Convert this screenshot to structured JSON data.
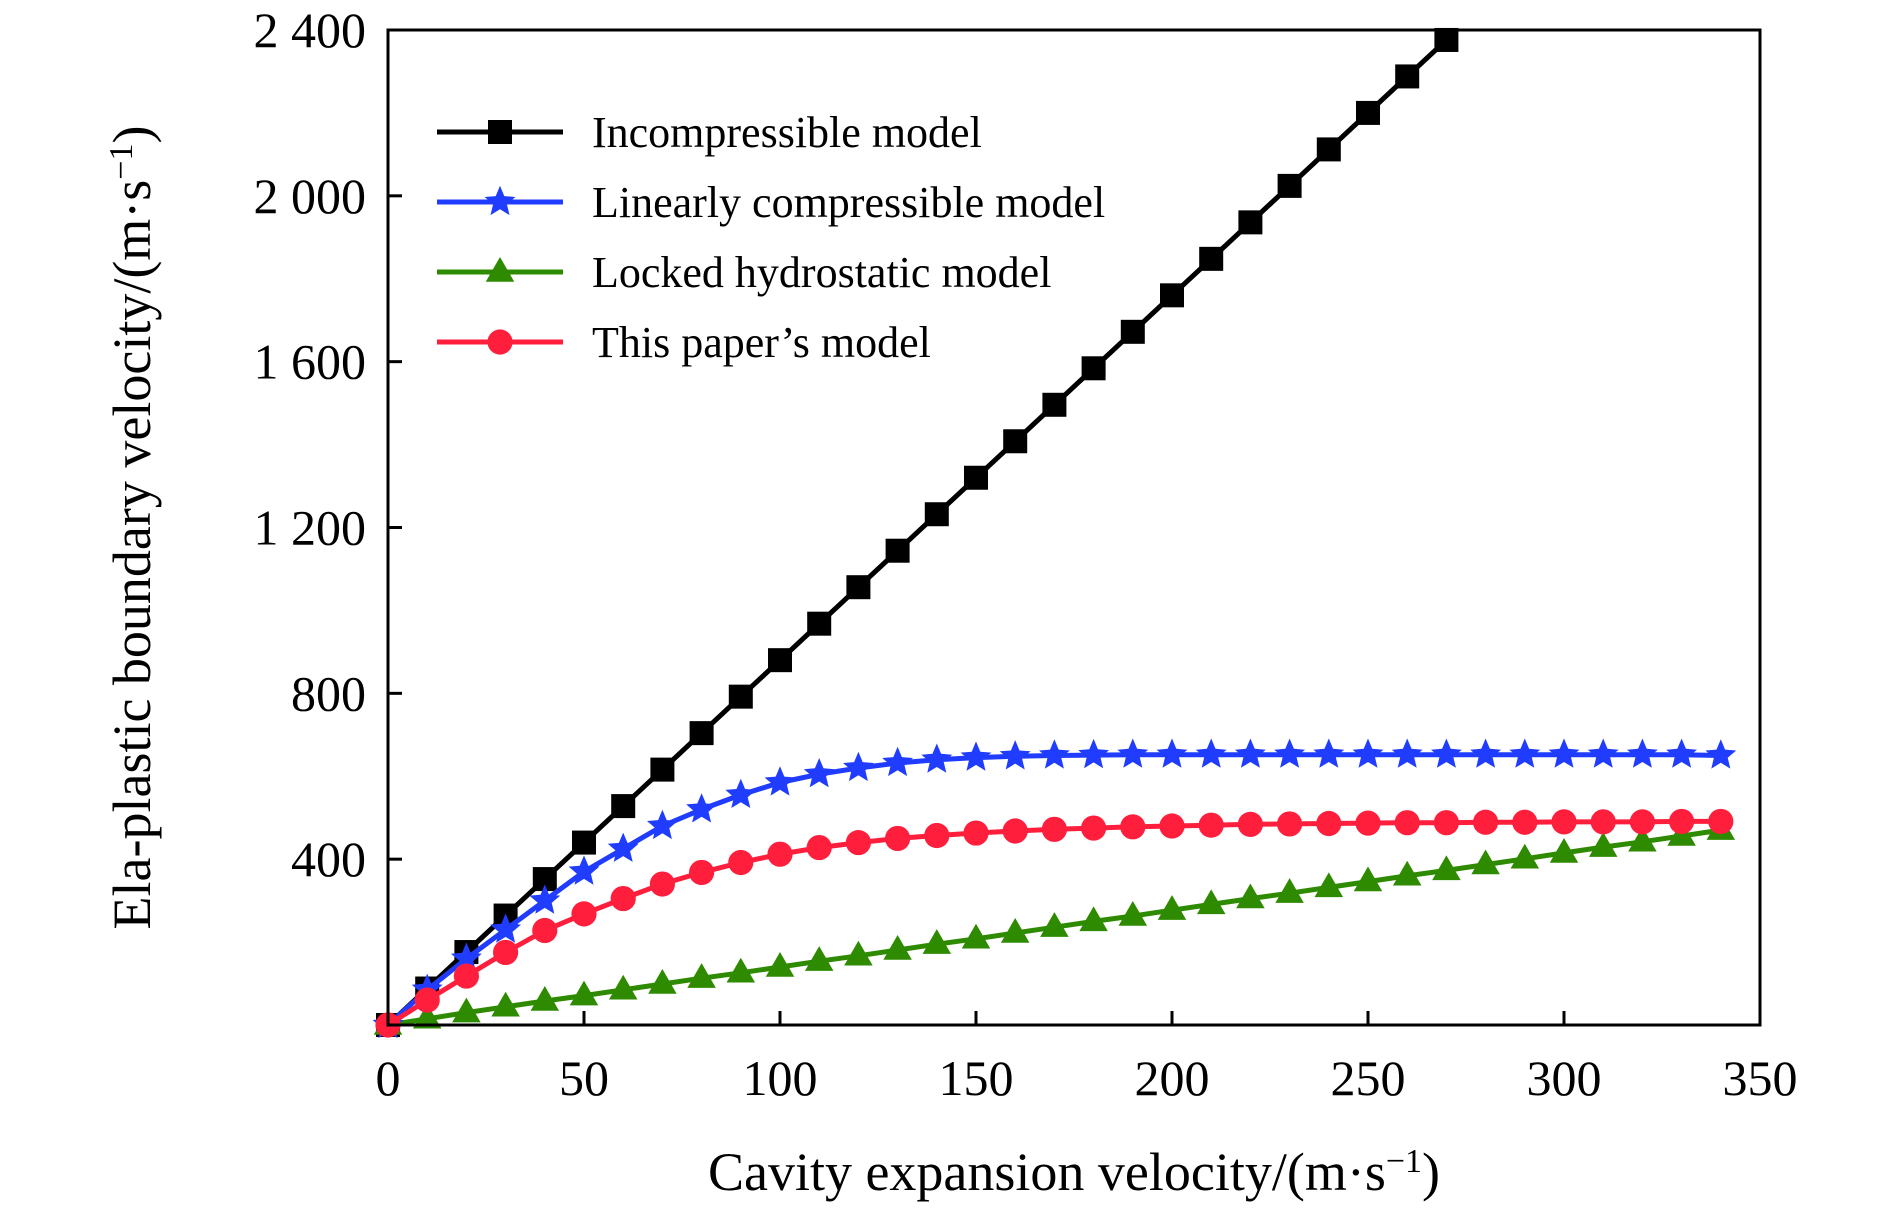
{
  "chart_data": {
    "type": "line",
    "xlabel": "Cavity expansion velocity/(m·s",
    "xlabel_sup": "−1",
    "xlabel_end": ")",
    "ylabel": "Ela-plastic boundary velocity/(m·s",
    "ylabel_sup": "−1",
    "ylabel_end": ")",
    "xlim": [
      0,
      350
    ],
    "ylim": [
      0,
      2400
    ],
    "xticks": [
      0,
      50,
      100,
      150,
      200,
      250,
      300,
      350
    ],
    "xtick_labels": [
      "0",
      "50",
      "100",
      "150",
      "200",
      "250",
      "300",
      "350"
    ],
    "yticks": [
      400,
      800,
      1200,
      1600,
      2000,
      2400
    ],
    "ytick_labels": [
      "400",
      "800",
      "1 200",
      "1 600",
      "2 000",
      "2 400"
    ],
    "grid": false,
    "legend_position": "top-left",
    "x": [
      0,
      10,
      20,
      30,
      40,
      50,
      60,
      70,
      80,
      90,
      100,
      110,
      120,
      130,
      140,
      150,
      160,
      170,
      180,
      190,
      200,
      210,
      220,
      230,
      240,
      250,
      260,
      270,
      280,
      290,
      300,
      310,
      320,
      330,
      340
    ],
    "series": [
      {
        "name": "Incompressible model",
        "color": "#000000",
        "marker": "square",
        "values": [
          0,
          88,
          176,
          264,
          352,
          440,
          528,
          616,
          704,
          792,
          880,
          968,
          1056,
          1144,
          1232,
          1320,
          1408,
          1496,
          1584,
          1672,
          1760,
          1848,
          1936,
          2024,
          2112,
          2200,
          2288,
          2376,
          null,
          null,
          null,
          null,
          null,
          null,
          null
        ]
      },
      {
        "name": "Linearly compressible model",
        "color": "#1f3cff",
        "marker": "star",
        "values": [
          0,
          85,
          160,
          230,
          300,
          370,
          425,
          480,
          520,
          555,
          585,
          605,
          620,
          632,
          640,
          645,
          648,
          650,
          651,
          652,
          652,
          652,
          652,
          652,
          652,
          652,
          652,
          652,
          652,
          652,
          652,
          652,
          652,
          652,
          650
        ]
      },
      {
        "name": "Locked hydrostatic model",
        "color": "#2e8b00",
        "marker": "triangle",
        "values": [
          0,
          15,
          30,
          44,
          58,
          71,
          85,
          99,
          113,
          126,
          140,
          154,
          167,
          181,
          195,
          208,
          222,
          236,
          250,
          263,
          277,
          291,
          305,
          318,
          332,
          346,
          360,
          373,
          387,
          401,
          415,
          429,
          442,
          456,
          470
        ]
      },
      {
        "name": "This paper’s model",
        "color": "#ff1f3d",
        "marker": "circle",
        "values": [
          0,
          60,
          118,
          175,
          228,
          268,
          305,
          340,
          368,
          392,
          412,
          428,
          440,
          450,
          457,
          463,
          468,
          472,
          475,
          478,
          480,
          482,
          484,
          485,
          486,
          487,
          488,
          488,
          489,
          489,
          490,
          490,
          490,
          491,
          491
        ]
      }
    ]
  }
}
